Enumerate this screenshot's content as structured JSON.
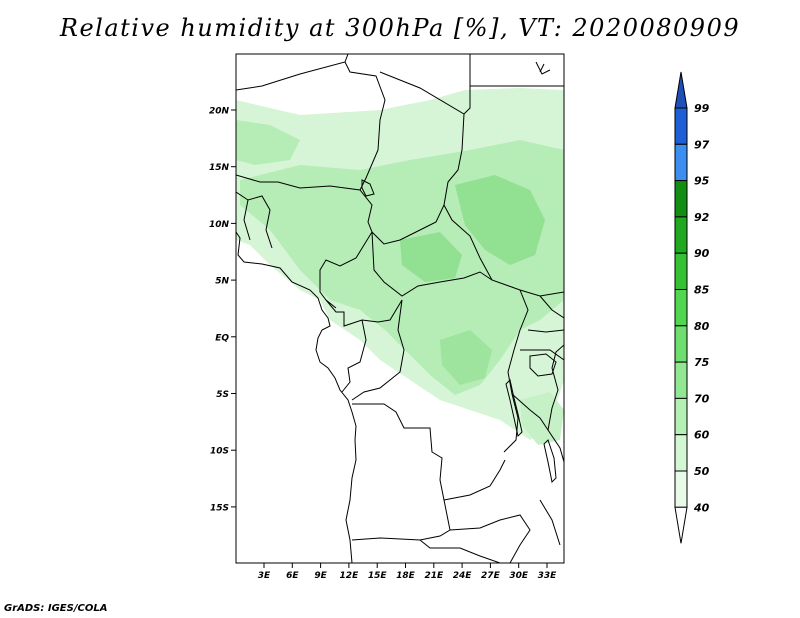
{
  "title": "Relative humidity at 300hPa [%], VT: 2020080909",
  "credit": "GrADS: IGES/COLA",
  "map": {
    "lat_labels": [
      "20N",
      "15N",
      "10N",
      "5N",
      "EQ",
      "5S",
      "10S",
      "15S"
    ],
    "lon_labels": [
      "3E",
      "6E",
      "9E",
      "12E",
      "15E",
      "18E",
      "21E",
      "24E",
      "27E",
      "30E",
      "33E"
    ],
    "field": "Relative humidity at 300hPa",
    "units": "%"
  },
  "colorbar": {
    "levels": [
      "99",
      "97",
      "95",
      "92",
      "90",
      "85",
      "80",
      "75",
      "70",
      "60",
      "50",
      "40"
    ],
    "colors": [
      "#1f5fd6",
      "#3c8ef0",
      "#128f12",
      "#21a821",
      "#34c234",
      "#50d650",
      "#6edf6e",
      "#92e892",
      "#b4f0b4",
      "#d2f7d2",
      "#e8fbe8",
      "#ffffff"
    ],
    "top_arrow_color": "#1f4fb8"
  },
  "colors": {
    "humid_light": "#d6f5d6",
    "humid_mid": "#b6ecb6",
    "humid_dark": "#92e092"
  }
}
